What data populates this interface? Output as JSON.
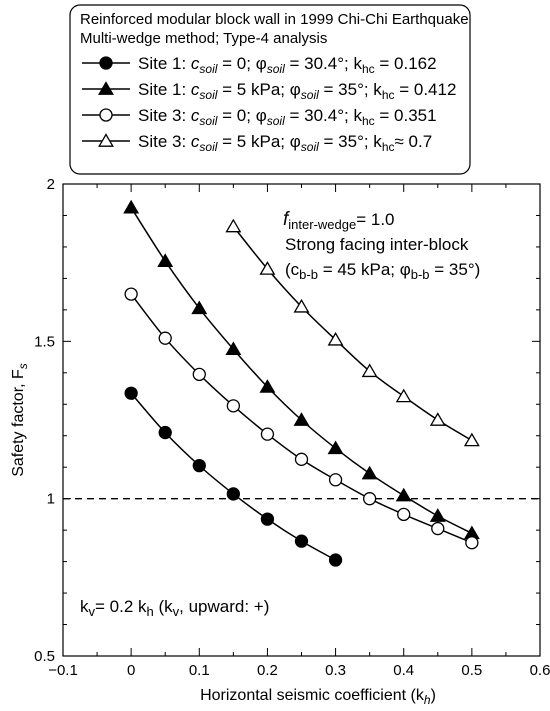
{
  "chart_data": {
    "type": "line",
    "xlabel": "Horizontal seismic coefficient (k",
    "xlabel_sub": "h",
    "ylabel": "Safety factor, F",
    "ylabel_sub": "s",
    "xlim": [
      -0.1,
      0.6
    ],
    "ylim": [
      0.5,
      2.0
    ],
    "xticks": [
      -0.1,
      0,
      0.1,
      0.2,
      0.3,
      0.4,
      0.5,
      0.6
    ],
    "xtick_labels": [
      "−0.1",
      "0",
      "0.1",
      "0.2",
      "0.3",
      "0.4",
      "0.5",
      "0.6"
    ],
    "yticks": [
      0.5,
      1.0,
      1.5,
      2.0
    ],
    "ytick_labels": [
      "0.5",
      "1",
      "1.5",
      "2"
    ],
    "reference_line": {
      "y": 1.0,
      "style": "dashed"
    },
    "legend": {
      "placement": "top",
      "title_line1": "Reinforced modular block wall in 1999 Chi-Chi Earthquake",
      "title_line2": "Multi-wedge method; Type-4 analysis"
    },
    "series": [
      {
        "name": "Site 1: c_soil = 0; φ_soil = 30.4°; k_hc = 0.162",
        "label_parts": {
          "site": "Site 1: ",
          "c": "soil",
          "c_val": " = 0; φ",
          "phi": "soil",
          "phi_val": " = 30.4°; k",
          "k": "hc",
          "k_val": " = 0.162"
        },
        "marker": "filled-circle",
        "x": [
          0,
          0.05,
          0.1,
          0.15,
          0.2,
          0.25,
          0.3
        ],
        "y": [
          1.335,
          1.21,
          1.105,
          1.015,
          0.935,
          0.865,
          0.805
        ]
      },
      {
        "name": "Site 1: c_soil = 5 kPa; φ_soil = 35°; k_hc = 0.412",
        "label_parts": {
          "site": "Site 1: ",
          "c": "soil",
          "c_val": " = 5 kPa; φ",
          "phi": "soil",
          "phi_val": " = 35°; k",
          "k": "hc",
          "k_val": " = 0.412"
        },
        "marker": "filled-triangle",
        "x": [
          0,
          0.05,
          0.1,
          0.15,
          0.2,
          0.25,
          0.3,
          0.35,
          0.4,
          0.45,
          0.5
        ],
        "y": [
          1.925,
          1.755,
          1.605,
          1.475,
          1.355,
          1.25,
          1.16,
          1.08,
          1.01,
          0.945,
          0.89
        ]
      },
      {
        "name": "Site 3: c_soil = 0; φ_soil = 30.4°; k_hc = 0.351",
        "label_parts": {
          "site": "Site 3: ",
          "c": "soil",
          "c_val": " = 0; φ",
          "phi": "soil",
          "phi_val": " = 30.4°; k",
          "k": "hc",
          "k_val": " = 0.351"
        },
        "marker": "open-circle",
        "x": [
          0,
          0.05,
          0.1,
          0.15,
          0.2,
          0.25,
          0.3,
          0.35,
          0.4,
          0.45,
          0.5
        ],
        "y": [
          1.65,
          1.51,
          1.395,
          1.295,
          1.205,
          1.125,
          1.06,
          1.0,
          0.95,
          0.905,
          0.86
        ]
      },
      {
        "name": "Site 3: c_soil = 5 kPa; φ_soil = 35°; k_hc ≈ 0.7",
        "label_parts": {
          "site": "Site 3: ",
          "c": "soil",
          "c_val": " = 5 kPa; φ",
          "phi": "soil",
          "phi_val": " = 35°; k",
          "k": "hc",
          "k_val": "≈ 0.7"
        },
        "marker": "open-triangle",
        "x": [
          0.15,
          0.2,
          0.25,
          0.3,
          0.35,
          0.4,
          0.45,
          0.5
        ],
        "y": [
          1.865,
          1.73,
          1.61,
          1.505,
          1.405,
          1.325,
          1.25,
          1.185
        ]
      }
    ],
    "annotations": {
      "finter_f": "f",
      "finter_sub": "inter-wedge",
      "finter_val": "= 1.0",
      "strong": "Strong facing inter-block",
      "cbb_open": "(c",
      "cbb_sub": "b-b",
      "cbb_val": " = 45 kPa; φ",
      "phibb_sub": "b-b",
      "phibb_val": " = 35°)",
      "kv_a": "k",
      "kv_sub1": "v",
      "kv_b": "= 0.2 k",
      "kv_sub2": "h",
      "kv_c": " (k",
      "kv_sub3": "v",
      "kv_d": ", upward: +)"
    }
  }
}
